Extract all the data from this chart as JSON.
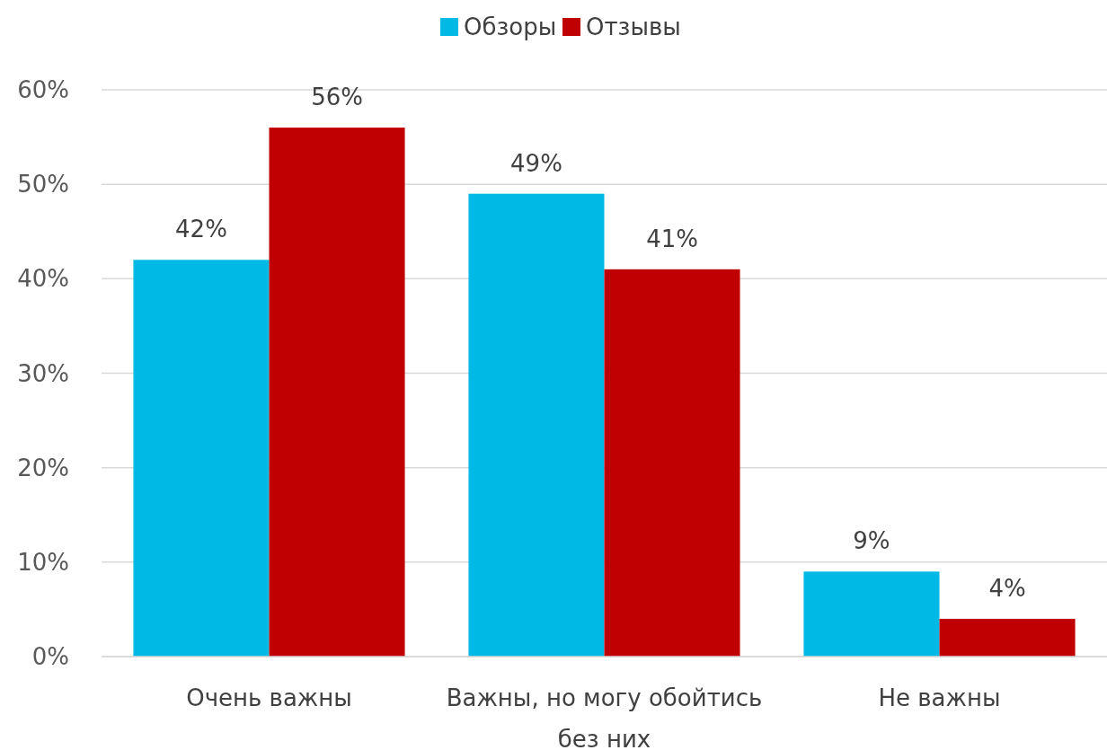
{
  "chart_data": {
    "type": "bar",
    "categories": [
      "Очень важны",
      "Важны, но могу обойтись без них",
      "Не важны"
    ],
    "series": [
      {
        "name": "Обзоры",
        "color": "#00b9e4",
        "values": [
          42,
          49,
          9
        ],
        "value_labels": [
          "42%",
          "49%",
          "9%"
        ]
      },
      {
        "name": "Отзывы",
        "color": "#c00000",
        "values": [
          56,
          41,
          4
        ],
        "value_labels": [
          "56%",
          "41%",
          "4%"
        ]
      }
    ],
    "ylim": [
      0,
      60
    ],
    "yticks": [
      {
        "value": 0,
        "label": "0%"
      },
      {
        "value": 10,
        "label": "10%"
      },
      {
        "value": 20,
        "label": "20%"
      },
      {
        "value": 30,
        "label": "30%"
      },
      {
        "value": 40,
        "label": "40%"
      },
      {
        "value": 50,
        "label": "50%"
      },
      {
        "value": 60,
        "label": "60%"
      }
    ],
    "grid": "y",
    "legend": "top"
  }
}
